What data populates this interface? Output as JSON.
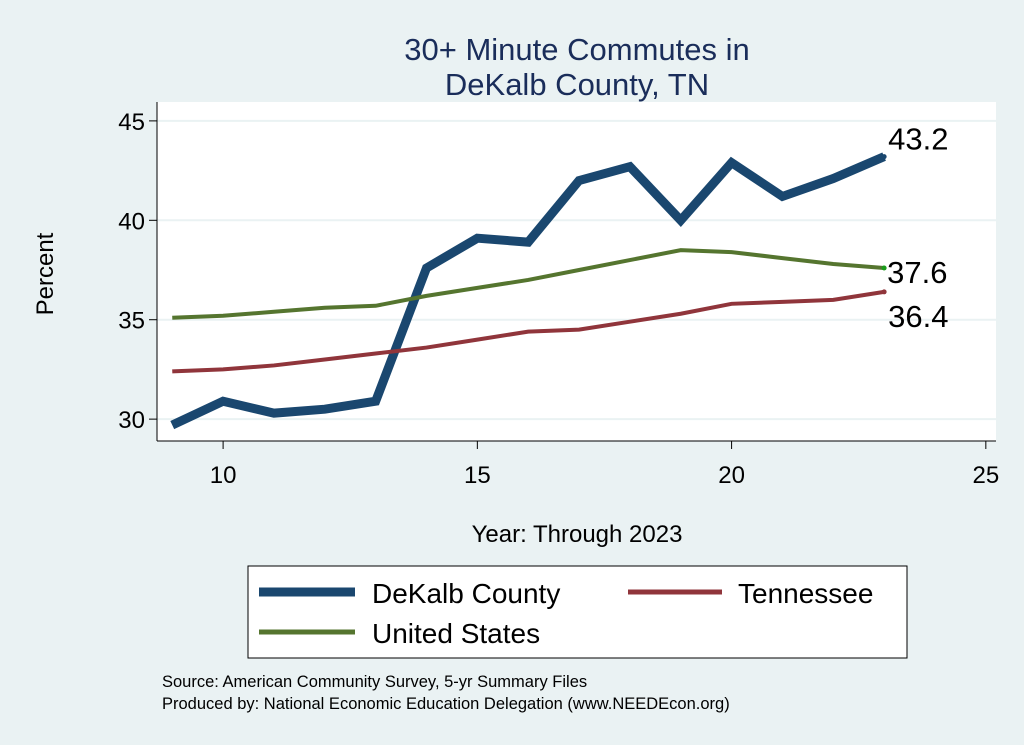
{
  "chart_data": {
    "type": "line",
    "title": [
      "30+ Minute Commutes in",
      "DeKalb County, TN"
    ],
    "xlabel": "Year: Through 2023",
    "ylabel": "Percent",
    "xlim": [
      8.7,
      25.2
    ],
    "ylim": [
      28.9,
      45.95
    ],
    "xticks": [
      10,
      15,
      20,
      25
    ],
    "yticks": [
      30,
      35,
      40,
      45
    ],
    "grid": true,
    "x": [
      9,
      10,
      11,
      12,
      13,
      14,
      15,
      16,
      17,
      18,
      19,
      20,
      21,
      22,
      23
    ],
    "series": [
      {
        "name": "DeKalb County",
        "color": "#1a476f",
        "values": [
          29.7,
          30.9,
          30.3,
          30.5,
          30.9,
          37.6,
          39.1,
          38.9,
          42.0,
          42.7,
          40.0,
          42.9,
          41.2,
          42.1,
          43.2
        ],
        "end_label": "43.2"
      },
      {
        "name": "Tennessee",
        "color": "#90353b",
        "values": [
          32.4,
          32.5,
          32.7,
          33.0,
          33.3,
          33.6,
          34.0,
          34.4,
          34.5,
          34.9,
          35.3,
          35.8,
          35.9,
          36.0,
          36.4
        ],
        "end_label": "36.4"
      },
      {
        "name": "United States",
        "color": "#55752f",
        "values": [
          35.1,
          35.2,
          35.4,
          35.6,
          35.7,
          36.2,
          36.6,
          37.0,
          37.5,
          38.0,
          38.5,
          38.4,
          38.1,
          37.8,
          37.6
        ],
        "end_label": "37.6"
      }
    ],
    "legend": {
      "position": "bottom",
      "entries": [
        "DeKalb County",
        "Tennessee",
        "United States"
      ]
    }
  },
  "source": {
    "line1": "Source: American Community Survey, 5-yr Summary Files",
    "line2": "Produced by: National Economic Education Delegation (www.NEEDEcon.org)"
  }
}
